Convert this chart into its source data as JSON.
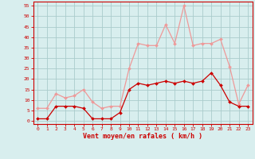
{
  "hours": [
    0,
    1,
    2,
    3,
    4,
    5,
    6,
    7,
    8,
    9,
    10,
    11,
    12,
    13,
    14,
    15,
    16,
    17,
    18,
    19,
    20,
    21,
    22,
    23
  ],
  "wind_mean": [
    1,
    1,
    7,
    7,
    7,
    6,
    1,
    1,
    1,
    4,
    15,
    18,
    17,
    18,
    19,
    18,
    19,
    18,
    19,
    23,
    17,
    9,
    7,
    7
  ],
  "wind_gust": [
    6,
    6,
    13,
    11,
    12,
    15,
    9,
    6,
    7,
    7,
    25,
    37,
    36,
    36,
    46,
    37,
    55,
    36,
    37,
    37,
    39,
    26,
    8,
    17
  ],
  "bg_color": "#d8eeee",
  "grid_color": "#aacccc",
  "line_mean_color": "#cc0000",
  "line_gust_color": "#ee9999",
  "xlabel": "Vent moyen/en rafales ( km/h )",
  "xlabel_color": "#cc0000",
  "ylabel_ticks": [
    0,
    5,
    10,
    15,
    20,
    25,
    30,
    35,
    40,
    45,
    50,
    55
  ],
  "ylim": [
    -1.5,
    57
  ],
  "xlim": [
    -0.5,
    23.5
  ],
  "tick_color": "#cc0000",
  "spine_color": "#cc0000",
  "marker_size": 2.0,
  "line_width": 0.9
}
